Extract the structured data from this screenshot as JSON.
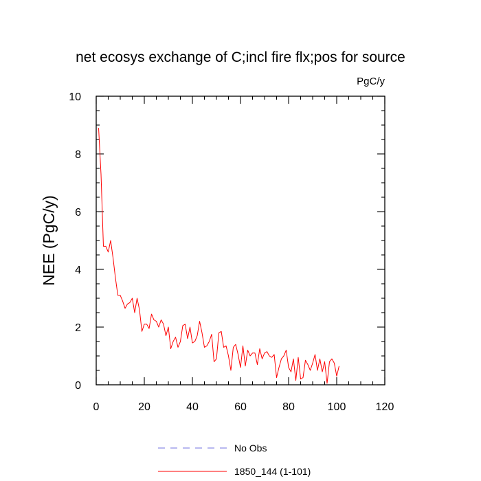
{
  "chart_data": {
    "type": "line",
    "title": "net ecosys exchange of C;incl fire flx;pos for source",
    "units_label": "PgC/y",
    "xlabel": "",
    "ylabel": "NEE  (PgC/y)",
    "xlim": [
      0,
      120
    ],
    "ylim": [
      0,
      10
    ],
    "xticks": [
      0,
      20,
      40,
      60,
      80,
      100,
      120
    ],
    "yticks": [
      0,
      2,
      4,
      6,
      8,
      10
    ],
    "grid": false,
    "legend_position": "bottom-center",
    "series": [
      {
        "name": "No Obs",
        "color": "#7070e0",
        "style": "dashed",
        "x": [],
        "y": []
      },
      {
        "name": "1850_144 (1-101)",
        "color": "#ff0000",
        "style": "solid",
        "x": [
          1,
          2,
          3,
          4,
          5,
          6,
          7,
          8,
          9,
          10,
          11,
          12,
          13,
          14,
          15,
          16,
          17,
          18,
          19,
          20,
          21,
          22,
          23,
          24,
          25,
          26,
          27,
          28,
          29,
          30,
          31,
          32,
          33,
          34,
          35,
          36,
          37,
          38,
          39,
          40,
          41,
          42,
          43,
          44,
          45,
          46,
          47,
          48,
          49,
          50,
          51,
          52,
          53,
          54,
          55,
          56,
          57,
          58,
          59,
          60,
          61,
          62,
          63,
          64,
          65,
          66,
          67,
          68,
          69,
          70,
          71,
          72,
          73,
          74,
          75,
          76,
          77,
          78,
          79,
          80,
          81,
          82,
          83,
          84,
          85,
          86,
          87,
          88,
          89,
          90,
          91,
          92,
          93,
          94,
          95,
          96,
          97,
          98,
          99,
          100,
          101
        ],
        "y": [
          8.9,
          7.3,
          4.8,
          4.8,
          4.6,
          5.0,
          4.4,
          3.7,
          3.1,
          3.1,
          2.9,
          2.65,
          2.8,
          2.85,
          3.0,
          2.5,
          3.0,
          2.6,
          1.85,
          2.1,
          2.1,
          1.95,
          2.45,
          2.25,
          2.2,
          2.0,
          2.25,
          2.1,
          1.7,
          2.0,
          1.25,
          1.5,
          1.65,
          1.3,
          1.5,
          2.05,
          2.1,
          1.6,
          2.0,
          1.45,
          1.5,
          1.7,
          2.2,
          1.8,
          1.3,
          1.35,
          1.5,
          1.75,
          0.8,
          0.9,
          1.8,
          1.85,
          1.3,
          1.35,
          1.0,
          0.5,
          1.3,
          1.4,
          1.05,
          0.6,
          1.35,
          0.65,
          1.2,
          1.0,
          1.1,
          1.1,
          0.7,
          1.25,
          0.9,
          1.1,
          1.15,
          1.0,
          0.95,
          1.05,
          0.25,
          0.6,
          0.9,
          1.0,
          1.2,
          0.6,
          0.45,
          0.9,
          0.15,
          0.95,
          0.2,
          0.25,
          0.85,
          0.7,
          0.5,
          0.75,
          1.05,
          0.5,
          0.9,
          0.45,
          0.8,
          0.05,
          0.8,
          0.9,
          0.75,
          0.3,
          0.65
        ]
      }
    ]
  }
}
